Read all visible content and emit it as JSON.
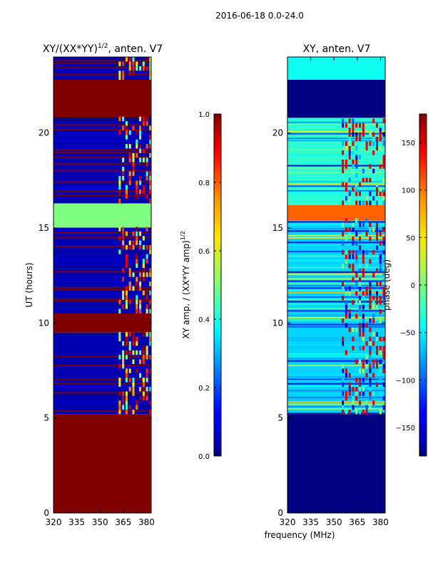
{
  "suptitle": "2016-06-18 0.0-24.0",
  "chart_data": [
    {
      "type": "heatmap",
      "title_main": "XY/(XX*YY)",
      "title_sup": "1/2",
      "title_tail": ", anten. V7",
      "xlabel": "",
      "ylabel": "UT (hours)",
      "xlim": [
        320,
        383
      ],
      "ylim": [
        0,
        24
      ],
      "xticks": [
        320,
        335,
        350,
        365,
        380
      ],
      "yticks": [
        0,
        5,
        10,
        15,
        20
      ],
      "colorbar": {
        "label_main": "XY amp. / (XX*YY amp)",
        "label_sup": "1/2",
        "range": [
          0.0,
          1.0
        ],
        "ticks": [
          "0.0",
          "0.2",
          "0.4",
          "0.6",
          "0.8",
          "1.0"
        ],
        "colormap": "jet"
      },
      "bands": [
        {
          "from": 0.0,
          "to": 5.2,
          "value": 1.0
        },
        {
          "from": 5.2,
          "to": 9.5,
          "value": 0.05,
          "note": "flagged stripes interleaved"
        },
        {
          "from": 9.5,
          "to": 10.5,
          "value": 1.0
        },
        {
          "from": 10.5,
          "to": 15.0,
          "value": 0.05,
          "note": "flagged stripes interleaved"
        },
        {
          "from": 15.0,
          "to": 16.3,
          "value": 0.5
        },
        {
          "from": 16.3,
          "to": 20.8,
          "value": 0.05,
          "note": "bright channels 362-380 MHz"
        },
        {
          "from": 20.8,
          "to": 22.8,
          "value": 1.0
        },
        {
          "from": 22.8,
          "to": 24.0,
          "value": 0.05,
          "note": "flagged stripes interleaved"
        }
      ]
    },
    {
      "type": "heatmap",
      "title": "XY, anten. V7",
      "xlabel": "frequency (MHz)",
      "ylabel": "",
      "xlim": [
        320,
        383
      ],
      "ylim": [
        0,
        24
      ],
      "xticks": [
        320,
        335,
        350,
        365,
        380
      ],
      "yticks": [
        0,
        5,
        10,
        15,
        20
      ],
      "colorbar": {
        "label": "phase (deg)",
        "range": [
          -180,
          180
        ],
        "ticks": [
          "−150",
          "−100",
          "−50",
          "0",
          "50",
          "100",
          "150"
        ],
        "tick_values": [
          -150,
          -100,
          -50,
          0,
          50,
          100,
          150
        ],
        "colormap": "jet"
      },
      "bands": [
        {
          "from": 0.0,
          "to": 5.2,
          "value": -180
        },
        {
          "from": 5.2,
          "to": 15.4,
          "value": -60,
          "note": "noisy phase, flagged stripes"
        },
        {
          "from": 15.4,
          "to": 16.2,
          "value": 100
        },
        {
          "from": 16.2,
          "to": 20.8,
          "value": -30,
          "note": "red phase above 360 MHz"
        },
        {
          "from": 20.8,
          "to": 22.8,
          "value": -180
        },
        {
          "from": 22.8,
          "to": 24.0,
          "value": -40
        }
      ]
    }
  ]
}
